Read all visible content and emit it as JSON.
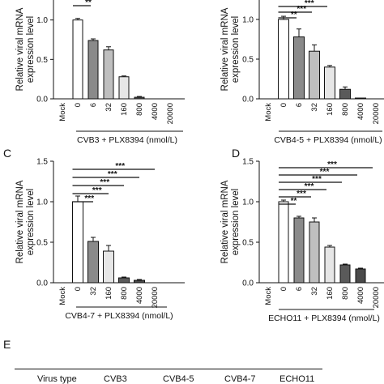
{
  "panel_letters": [
    "C",
    "D",
    "E"
  ],
  "chart_data": [
    {
      "type": "bar",
      "ylabel": "Relative viral mRNA\nexpression level",
      "xlabel": "CVB3 + PLX8394 (nmol/L)",
      "categories": [
        "Mock",
        "0",
        "6",
        "32",
        "160",
        "800",
        "4000",
        "20000"
      ],
      "values": [
        0,
        1.0,
        0.74,
        0.62,
        0.28,
        0.02,
        0.0,
        0.0
      ],
      "errors": [
        0,
        0.02,
        0.02,
        0.04,
        0.01,
        0.01,
        0.0,
        0.0
      ],
      "ylim": [
        0,
        1.5
      ],
      "yticks": [
        "0.0",
        "0.5",
        "1.0"
      ],
      "significance": [
        "**",
        "***",
        "",
        "",
        "",
        ""
      ]
    },
    {
      "type": "bar",
      "ylabel": "Relative viral mRNA\nexpression level",
      "xlabel": "CVB4-5 + PLX8394 (nmol/L)",
      "categories": [
        "Mock",
        "0",
        "6",
        "32",
        "160",
        "800",
        "4000",
        "20000"
      ],
      "values": [
        0,
        1.0,
        0.78,
        0.6,
        0.4,
        0.12,
        0.01,
        0.0
      ],
      "errors": [
        0,
        0.04,
        0.1,
        0.08,
        0.02,
        0.03,
        0.0,
        0.0
      ],
      "ylim": [
        0,
        1.5
      ],
      "yticks": [
        "0.0",
        "0.5",
        "1.0"
      ],
      "significance": [
        "**",
        "***",
        "***"
      ]
    },
    {
      "type": "bar",
      "ylabel": "Relative viral mRNA\nexpression level",
      "xlabel": "CVB4-7 + PLX8394 (nmol/L)",
      "categories": [
        "Mock",
        "0",
        "32",
        "160",
        "800",
        "4000",
        "20000"
      ],
      "values": [
        0,
        1.0,
        0.51,
        0.39,
        0.06,
        0.03,
        0.0
      ],
      "errors": [
        0,
        0.07,
        0.05,
        0.07,
        0.01,
        0.01,
        0.0
      ],
      "ylim": [
        0,
        1.5
      ],
      "yticks": [
        "0.0",
        "0.5",
        "1.0",
        "1.5"
      ],
      "significance": [
        "***",
        "***",
        "***",
        "***",
        "***"
      ]
    },
    {
      "type": "bar",
      "ylabel": "Relative viral mRNA\nexpression level",
      "xlabel": "ECHO11 + PLX8394 (nmol/L)",
      "categories": [
        "Mock",
        "0",
        "6",
        "32",
        "160",
        "800",
        "4000",
        "20000"
      ],
      "values": [
        0,
        1.0,
        0.8,
        0.75,
        0.44,
        0.22,
        0.17,
        0.0
      ],
      "errors": [
        0,
        0.02,
        0.02,
        0.05,
        0.02,
        0.01,
        0.01,
        0.0
      ],
      "ylim": [
        0,
        1.5
      ],
      "yticks": [
        "0.0",
        "0.5",
        "1.0",
        "1.5"
      ],
      "significance": [
        "**",
        "***",
        "***",
        "***",
        "***",
        "***"
      ]
    }
  ],
  "table": {
    "headers": [
      "Virus type",
      "CVB3",
      "CVB4-5",
      "CVB4-7",
      "ECHO11"
    ]
  }
}
